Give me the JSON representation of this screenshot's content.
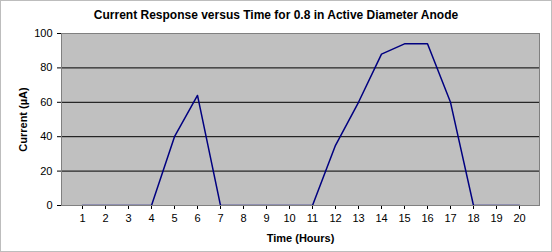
{
  "chart_data": {
    "type": "line",
    "title": "Current Response versus Time for 0.8 in Active Diameter Anode",
    "x_label": "Time (Hours)",
    "y_label": "Current (µA)",
    "categories": [
      "1",
      "2",
      "3",
      "4",
      "5",
      "6",
      "7",
      "8",
      "9",
      "10",
      "11",
      "12",
      "13",
      "14",
      "15",
      "16",
      "17",
      "18",
      "19",
      "20"
    ],
    "values": [
      0,
      0,
      0,
      0,
      40,
      64,
      0,
      0,
      0,
      0,
      0,
      35,
      60,
      88,
      94,
      94,
      60,
      0,
      0,
      0
    ],
    "color": "#000080",
    "ylim": [
      0,
      100
    ],
    "yticks": [
      0,
      20,
      40,
      60,
      80,
      100
    ],
    "grid": true
  }
}
